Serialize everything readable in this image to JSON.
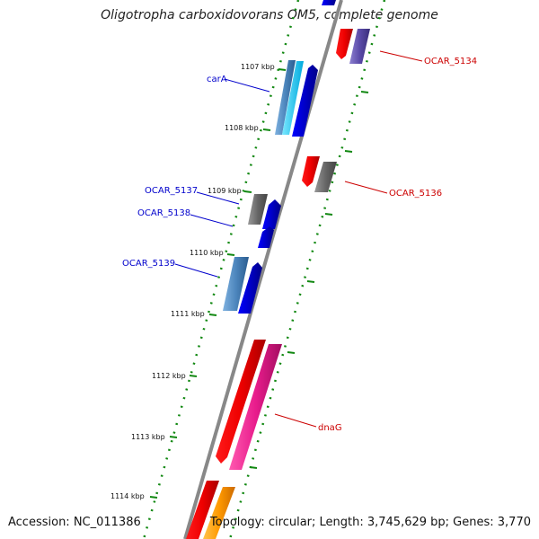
{
  "title": "Oligotropha carboxidovorans OM5, complete genome",
  "footer": {
    "accession": "Accession: NC_011386",
    "summary": "Topology: circular; Length: 3,745,629 bp; Genes: 3,770"
  },
  "ticks": [
    {
      "label": "1107 kbp",
      "kbp": 1107
    },
    {
      "label": "1108 kbp",
      "kbp": 1108
    },
    {
      "label": "1109 kbp",
      "kbp": 1109
    },
    {
      "label": "1110 kbp",
      "kbp": 1110
    },
    {
      "label": "1111 kbp",
      "kbp": 1111
    },
    {
      "label": "1112 kbp",
      "kbp": 1112
    },
    {
      "label": "1113 kbp",
      "kbp": 1113
    },
    {
      "label": "1114 kbp",
      "kbp": 1114
    }
  ],
  "gene_labels": [
    {
      "name": "carA",
      "strand": "forward",
      "color": "#0000cc"
    },
    {
      "name": "OCAR_5137",
      "strand": "forward",
      "color": "#0000cc"
    },
    {
      "name": "OCAR_5138",
      "strand": "forward",
      "color": "#0000cc"
    },
    {
      "name": "OCAR_5139",
      "strand": "forward",
      "color": "#0000cc"
    },
    {
      "name": "OCAR_5134",
      "strand": "reverse",
      "color": "#cc0000"
    },
    {
      "name": "OCAR_5136",
      "strand": "reverse",
      "color": "#cc0000"
    },
    {
      "name": "dnaG",
      "strand": "reverse",
      "color": "#cc0000"
    }
  ],
  "colors": {
    "backbone": "#888888",
    "dotted_track": "#118811",
    "cds_forward": "#0000ee",
    "cds_reverse": "#ee0000",
    "rna_gene": "#4f8fc8",
    "pseudo_gray": "#6a6a6a",
    "dnaG_magenta": "#e81c8c",
    "orange": "#ff9900",
    "purple": "#5a4aa8",
    "cyan": "#22ccee"
  }
}
